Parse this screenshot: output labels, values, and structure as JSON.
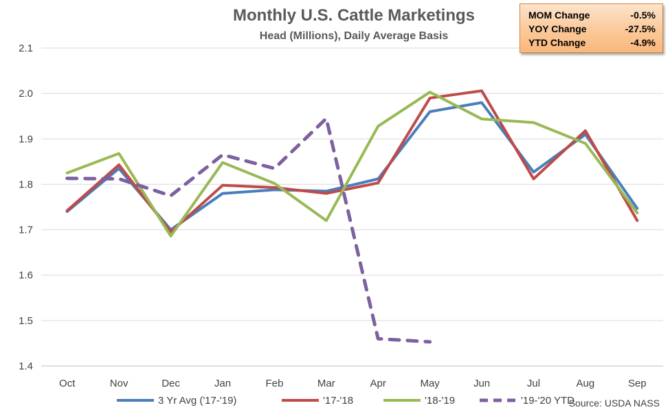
{
  "chart_data": {
    "type": "line",
    "title": "Monthly U.S. Cattle Marketings",
    "subtitle": "Head (Millions), Daily Average Basis",
    "categories": [
      "Oct",
      "Nov",
      "Dec",
      "Jan",
      "Feb",
      "Mar",
      "Apr",
      "May",
      "Jun",
      "Jul",
      "Aug",
      "Sep"
    ],
    "ylim": [
      1.4,
      2.1
    ],
    "yticks": [
      "1.4",
      "1.5",
      "1.6",
      "1.7",
      "1.8",
      "1.9",
      "2.0",
      "2.1"
    ],
    "grid": true,
    "legend_position": "bottom",
    "series": [
      {
        "name": "3 Yr Avg ('17-'19)",
        "color": "#4a7ebb",
        "dashed": false,
        "values": [
          1.74,
          1.835,
          1.7,
          1.78,
          1.788,
          1.785,
          1.812,
          1.96,
          1.98,
          1.827,
          1.91,
          1.747
        ]
      },
      {
        "name": "'17-'18",
        "color": "#be4b48",
        "dashed": false,
        "values": [
          1.742,
          1.843,
          1.695,
          1.798,
          1.793,
          1.78,
          1.803,
          1.99,
          2.006,
          1.812,
          1.918,
          1.72
        ]
      },
      {
        "name": "'18-'19",
        "color": "#98b954",
        "dashed": false,
        "values": [
          1.825,
          1.868,
          1.686,
          1.848,
          1.802,
          1.72,
          1.928,
          2.003,
          1.944,
          1.936,
          1.89,
          1.737
        ]
      },
      {
        "name": "'19-'20 YTD",
        "color": "#7d60a0",
        "dashed": true,
        "values": [
          1.813,
          1.812,
          1.775,
          1.865,
          1.835,
          1.945,
          1.46,
          1.453,
          null,
          null,
          null,
          null
        ]
      }
    ]
  },
  "summary": {
    "rows": [
      {
        "label": "MOM Change",
        "value": "-0.5%"
      },
      {
        "label": "YOY Change",
        "value": "-27.5%"
      },
      {
        "label": "YTD Change",
        "value": "-4.9%"
      }
    ]
  },
  "source": "Source: USDA NASS"
}
